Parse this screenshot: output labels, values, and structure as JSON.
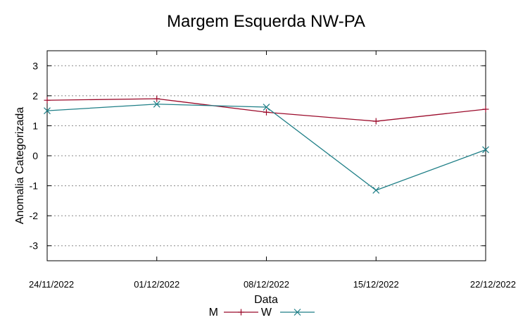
{
  "chart_data": {
    "type": "line",
    "title": "Margem Esquerda NW-PA",
    "xlabel": "Data",
    "ylabel": "Anomalia Categorizada",
    "x": [
      "24/11/2022",
      "01/12/2022",
      "08/12/2022",
      "15/12/2022",
      "22/12/2022"
    ],
    "ylim": [
      -3.5,
      3.5
    ],
    "yticks": [
      "3",
      "2",
      "1",
      "0",
      "-1",
      "-2",
      "-3"
    ],
    "ytick_values": [
      3,
      2,
      1,
      0,
      -1,
      -2,
      -3
    ],
    "grid": true,
    "legend_position": "bottom-center",
    "series": [
      {
        "name": "M",
        "color": "#9b0a2a",
        "marker": "plus",
        "values": [
          1.85,
          1.9,
          1.45,
          1.15,
          1.55
        ]
      },
      {
        "name": "W",
        "color": "#1f7f87",
        "marker": "cross",
        "values": [
          1.5,
          1.72,
          1.62,
          -1.15,
          0.2
        ]
      }
    ]
  }
}
